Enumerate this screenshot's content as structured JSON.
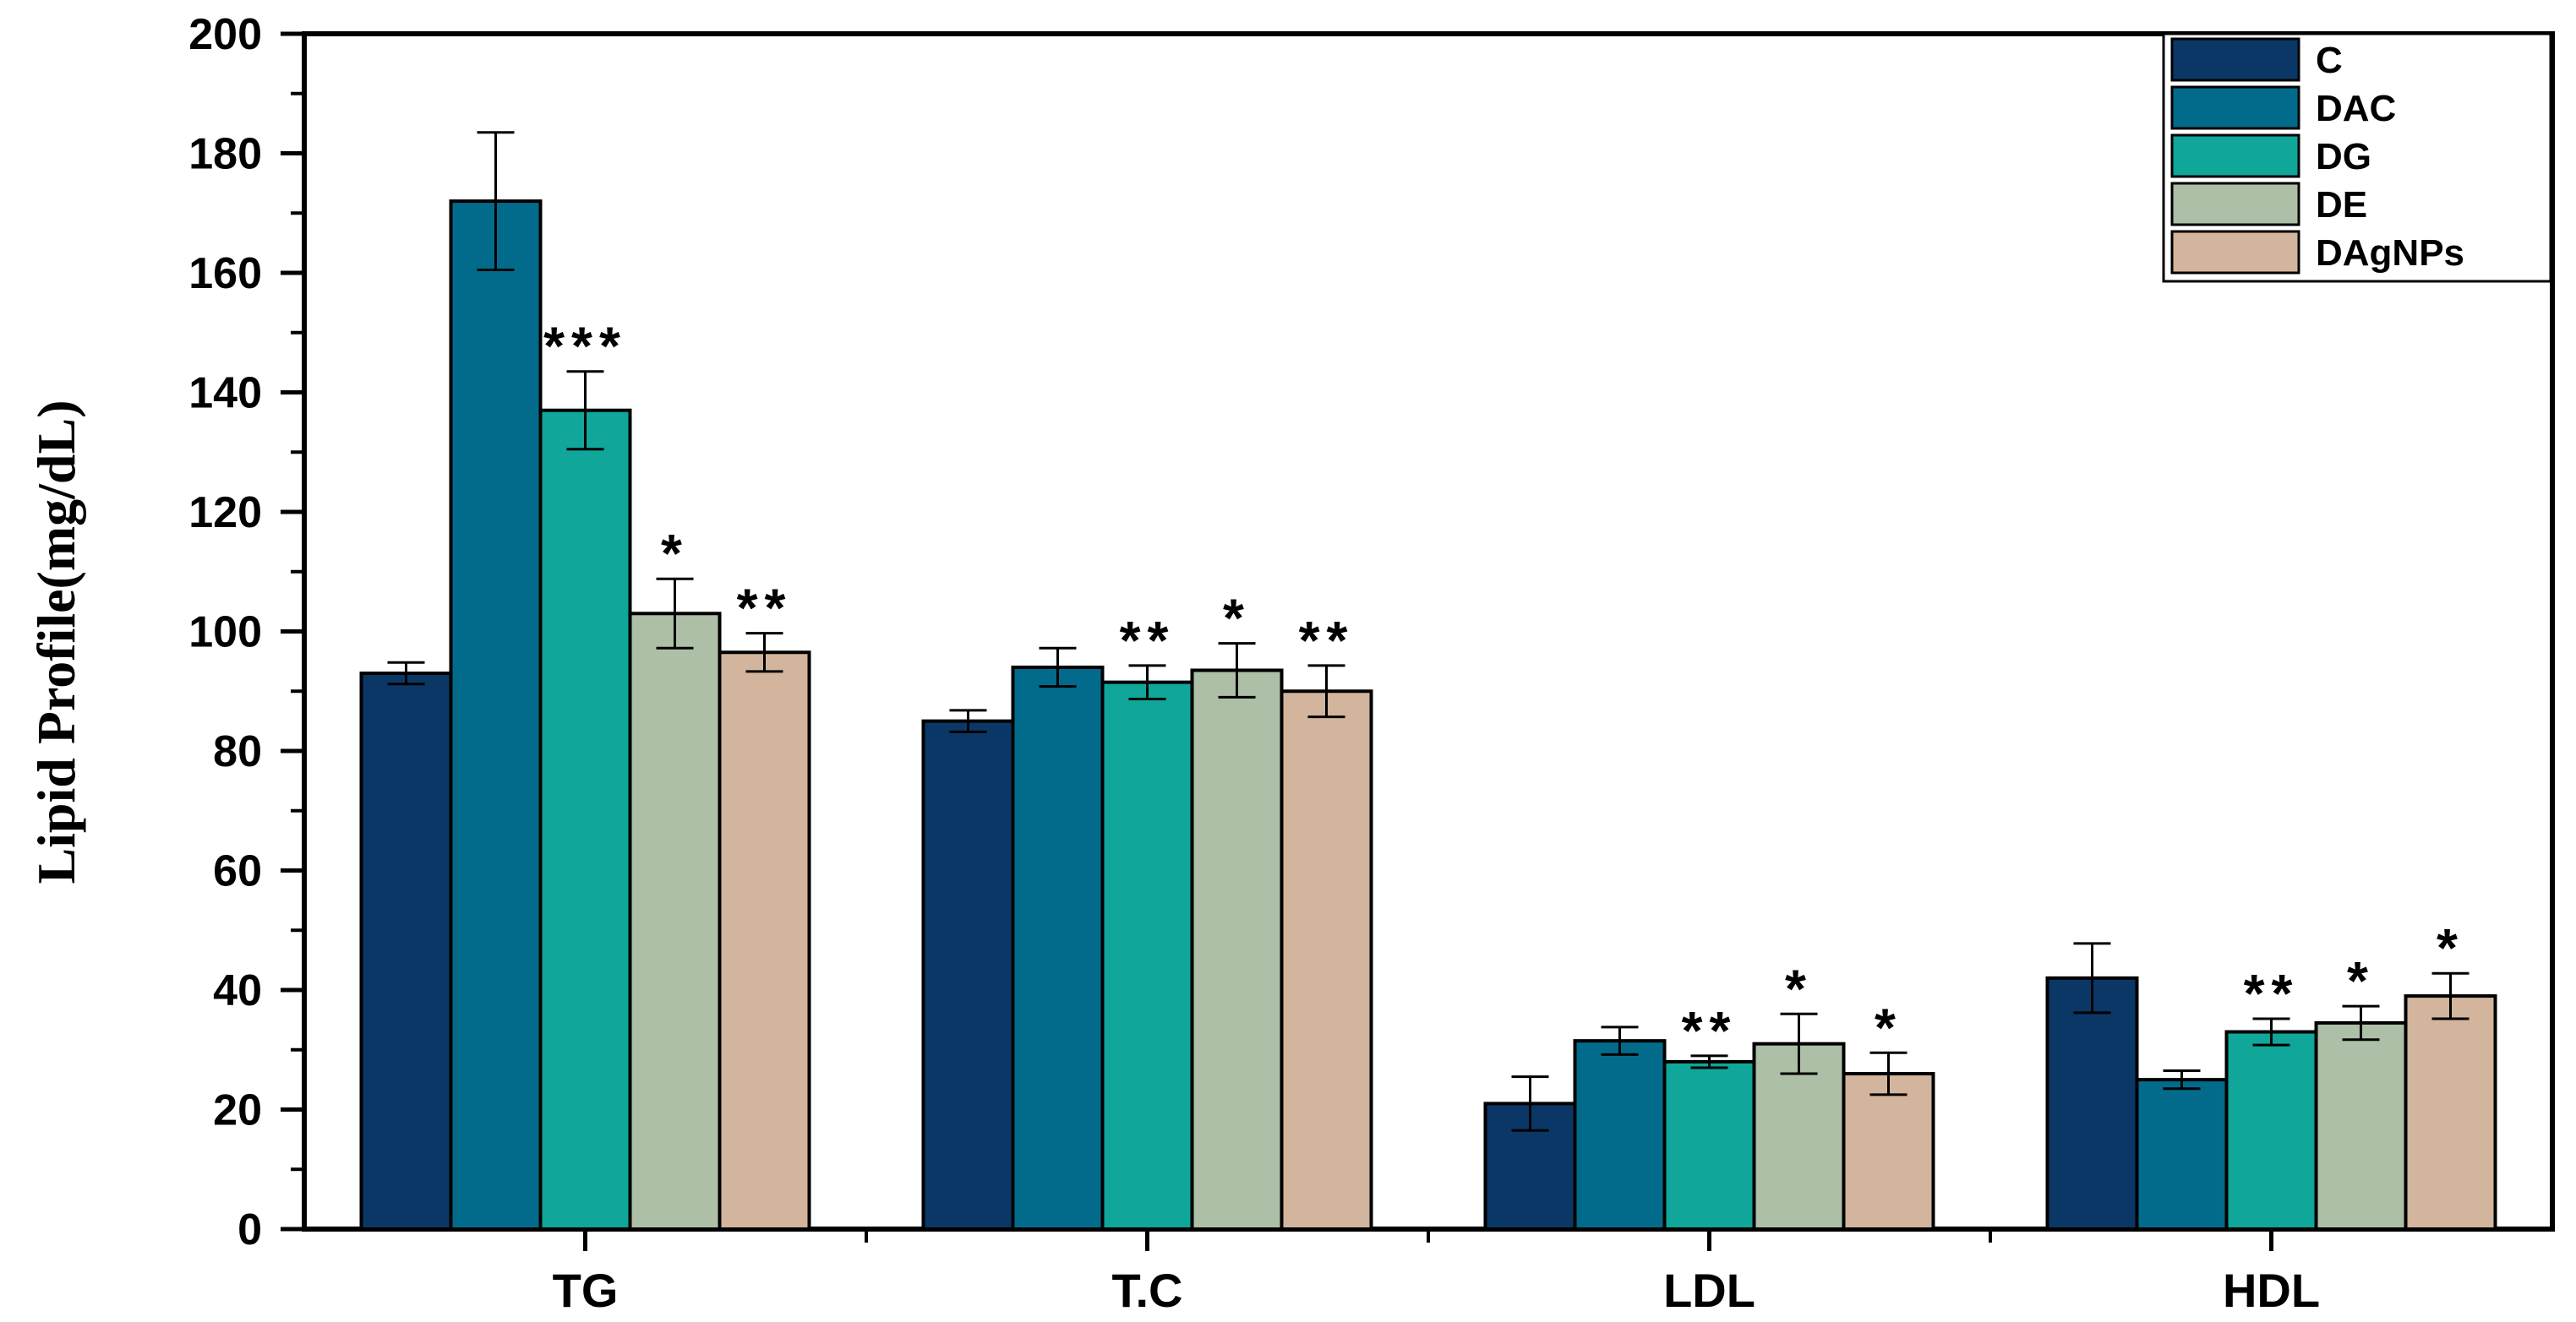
{
  "chart_data": {
    "type": "bar",
    "title": "",
    "xlabel": "",
    "ylabel": "Lipid Profile(mg/dL)",
    "ylim": [
      0,
      200
    ],
    "yticks": [
      0,
      20,
      40,
      60,
      80,
      100,
      120,
      140,
      160,
      180,
      200
    ],
    "categories": [
      "TG",
      "T.C",
      "LDL",
      "HDL"
    ],
    "legend_position": "top-right",
    "series": [
      {
        "name": "C",
        "color": "#0a3766",
        "values": [
          93,
          85,
          21,
          42
        ],
        "errors": [
          1.8,
          1.8,
          4.5,
          5.8
        ],
        "sig": [
          "",
          "",
          "",
          ""
        ]
      },
      {
        "name": "DAC",
        "color": "#026b8c",
        "values": [
          172,
          94,
          31.5,
          25
        ],
        "errors": [
          11.5,
          3.2,
          2.3,
          1.5
        ],
        "sig": [
          "",
          "",
          "",
          ""
        ]
      },
      {
        "name": "DG",
        "color": "#10a69a",
        "values": [
          137,
          91.5,
          28,
          33
        ],
        "errors": [
          6.5,
          2.8,
          1.0,
          2.2
        ],
        "sig": [
          "***",
          "**",
          "**",
          "**"
        ]
      },
      {
        "name": "DE",
        "color": "#adbfa6",
        "values": [
          103,
          93.5,
          31,
          34.5
        ],
        "errors": [
          5.8,
          4.5,
          5.0,
          2.8
        ],
        "sig": [
          "*",
          "*",
          "*",
          "*"
        ]
      },
      {
        "name": "DAgNPs",
        "color": "#d2b59c",
        "values": [
          96.5,
          90,
          26,
          39
        ],
        "errors": [
          3.2,
          4.3,
          3.5,
          3.8
        ],
        "sig": [
          "**",
          "**",
          "*",
          "*"
        ]
      }
    ]
  }
}
